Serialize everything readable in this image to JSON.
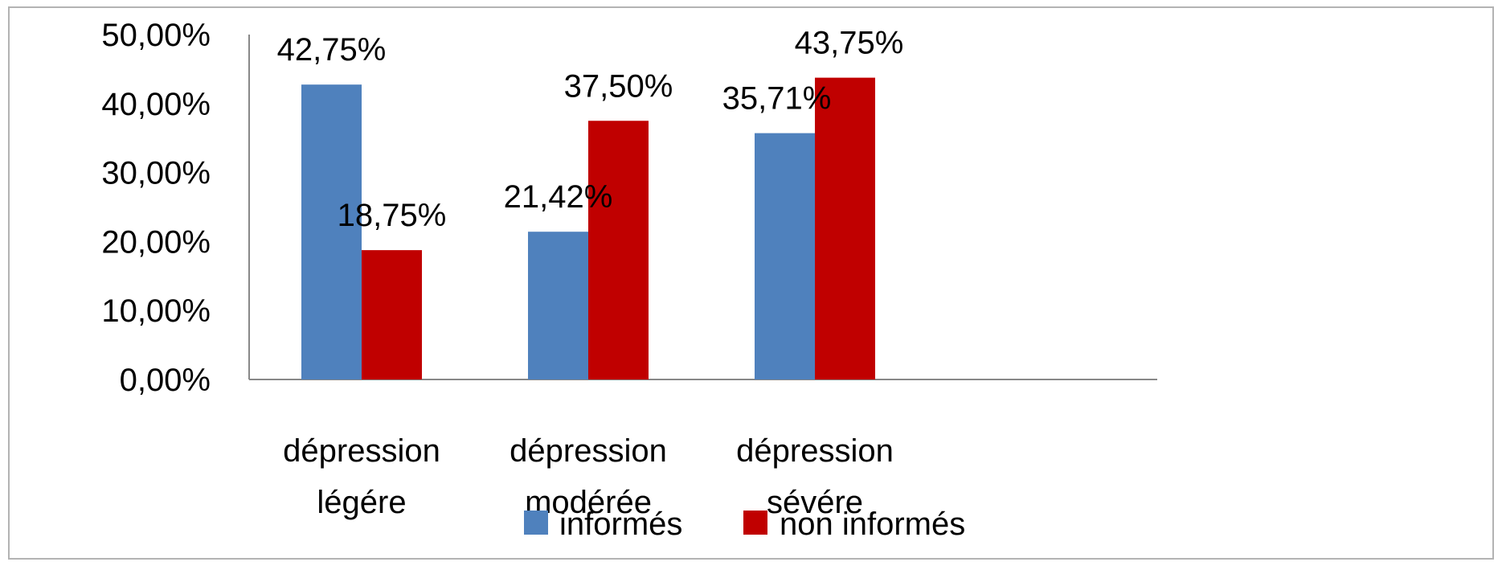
{
  "chart_data": {
    "type": "bar",
    "categories": [
      [
        "dépression",
        "légére"
      ],
      [
        "dépression",
        "modérée"
      ],
      [
        "dépression",
        "sévére"
      ]
    ],
    "series": [
      {
        "name": "informés",
        "color": "#4f81bd",
        "values": [
          42.75,
          21.42,
          35.71
        ],
        "labels": [
          "42,75%",
          "21,42%",
          "35,71%"
        ]
      },
      {
        "name": "non informés",
        "color": "#c00000",
        "values": [
          18.75,
          37.5,
          43.75
        ],
        "labels": [
          "18,75%",
          "37,50%",
          "43,75%"
        ]
      }
    ],
    "ylim": [
      0,
      50
    ],
    "yticks": [
      0,
      10,
      20,
      30,
      40,
      50
    ],
    "ytick_labels": [
      "0,00%",
      "10,00%",
      "20,00%",
      "30,00%",
      "40,00%",
      "50,00%"
    ],
    "grid": false,
    "legend": "bottom"
  }
}
